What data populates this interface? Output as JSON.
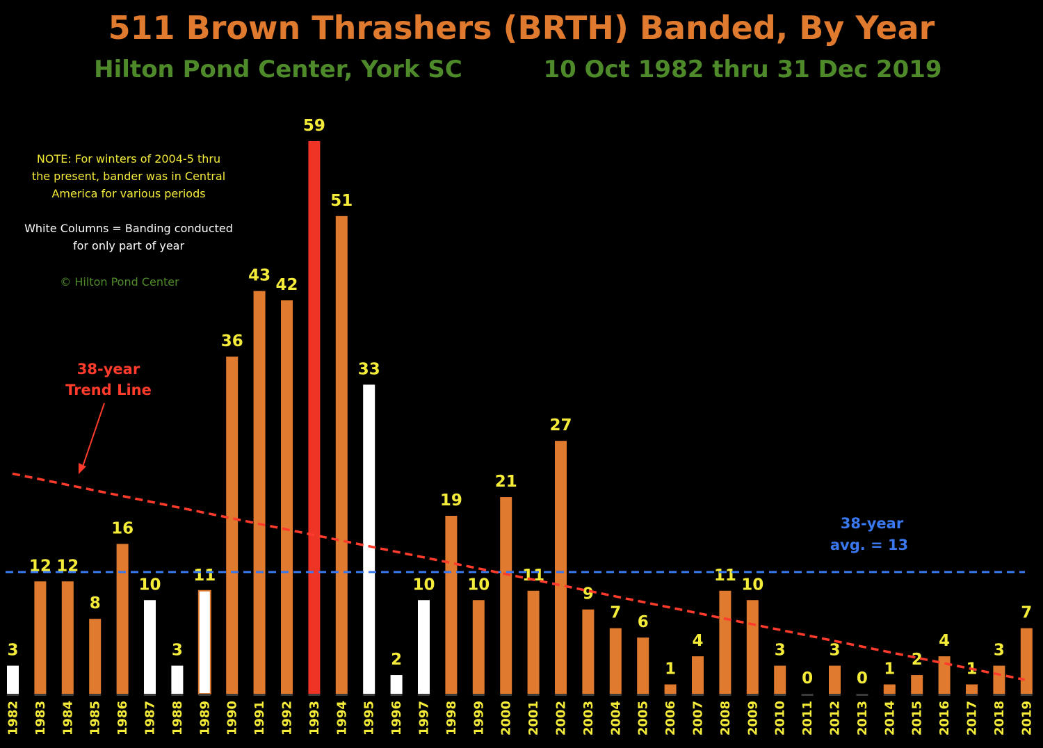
{
  "header": {
    "title": "511 Brown Thrashers (BRTH) Banded, By Year",
    "subtitle_left": "Hilton Pond Center, York SC",
    "subtitle_right": "10 Oct 1982 thru 31 Dec 2019"
  },
  "notes": {
    "note_line1": "NOTE: For winters of 2004-5 thru",
    "note_line2": "the present, bander was in Central",
    "note_line3": "America for various periods",
    "legend_line1": "White Columns = Banding conducted",
    "legend_line2": "for only part of year",
    "copyright": "© Hilton Pond Center"
  },
  "annotations": {
    "trend_label_line1": "38-year",
    "trend_label_line2": "Trend Line",
    "avg_label_line1": "38-year",
    "avg_label_line2": "avg. = 13"
  },
  "colors": {
    "background": "#000000",
    "bar_full_year": "#e07a2e",
    "bar_partial_year": "#ffffff",
    "bar_max_year": "#ee3424",
    "value_labels": "#f5ec3a",
    "trend_line": "#ff3b2b",
    "average_line": "#3a78f0"
  },
  "chart_data": {
    "type": "bar",
    "title": "511 Brown Thrashers (BRTH) Banded, By Year",
    "categories": [
      "1982",
      "1983",
      "1984",
      "1985",
      "1986",
      "1987",
      "1988",
      "1989",
      "1990",
      "1991",
      "1992",
      "1993",
      "1994",
      "1995",
      "1996",
      "1997",
      "1998",
      "1999",
      "2000",
      "2001",
      "2002",
      "2003",
      "2004",
      "2005",
      "2006",
      "2007",
      "2008",
      "2009",
      "2010",
      "2011",
      "2012",
      "2013",
      "2014",
      "2015",
      "2016",
      "2017",
      "2018",
      "2019"
    ],
    "values": [
      3,
      12,
      12,
      8,
      16,
      10,
      3,
      11,
      36,
      43,
      42,
      59,
      51,
      33,
      2,
      10,
      19,
      10,
      21,
      11,
      27,
      9,
      7,
      6,
      1,
      4,
      11,
      10,
      3,
      0,
      3,
      0,
      1,
      2,
      4,
      1,
      3,
      7
    ],
    "bar_style": [
      "partial",
      "full",
      "full",
      "full",
      "full",
      "partial",
      "partial",
      "partial-outlined",
      "full",
      "full",
      "full",
      "max",
      "full",
      "partial",
      "partial",
      "partial",
      "full",
      "full",
      "full",
      "full",
      "full",
      "full",
      "full",
      "full",
      "full",
      "full",
      "full",
      "full",
      "full",
      "full",
      "full",
      "full",
      "full",
      "full",
      "full",
      "full",
      "full",
      "full"
    ],
    "average": 13,
    "trend_line": {
      "start": 23.5,
      "end": 1.5
    },
    "ylim": [
      0,
      60
    ],
    "xlabel": "",
    "ylabel": "",
    "grid": false
  }
}
